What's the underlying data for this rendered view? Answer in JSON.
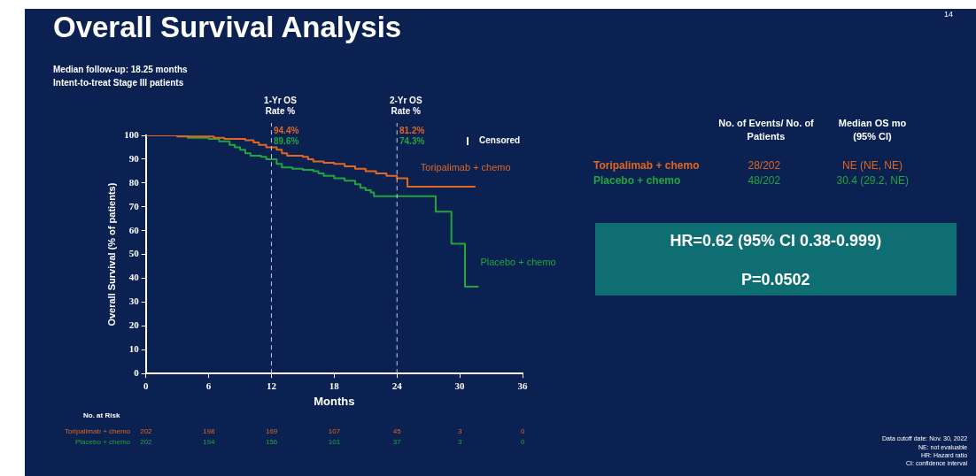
{
  "chart_data": {
    "type": "step",
    "title": "Overall Survival Analysis",
    "xlabel": "Months",
    "ylabel": "Overall Survival (% of patients)",
    "xlim": [
      0,
      36
    ],
    "xticks": [
      0,
      6,
      12,
      18,
      24,
      30,
      36
    ],
    "ylim": [
      0,
      100
    ],
    "yticks": [
      0,
      10,
      20,
      30,
      40,
      50,
      60,
      70,
      80,
      90,
      100
    ],
    "grid": false,
    "legend": false,
    "marker": "none",
    "line_style": "solid",
    "series": [
      {
        "name": "Toripalimab + chemo",
        "color": "#e2661f",
        "x": [
          0,
          3,
          6.5,
          7.5,
          9.5,
          10.3,
          10.8,
          11.5,
          12.5,
          13,
          13.5,
          15,
          15.5,
          16,
          17,
          18,
          19,
          20,
          21,
          22,
          23,
          24,
          25,
          31.5
        ],
        "values": [
          100,
          99.5,
          99,
          98.5,
          98,
          97,
          96,
          95,
          94,
          92.5,
          91.5,
          91,
          90,
          89,
          88.5,
          88,
          87,
          86,
          85,
          84,
          83,
          82,
          78.5,
          78.5
        ]
      },
      {
        "name": "Placebo + chemo",
        "color": "#20a63c",
        "x": [
          0,
          4,
          6,
          7,
          8,
          8.5,
          9,
          9.5,
          10,
          11,
          11.5,
          12.5,
          13,
          14,
          15,
          16,
          16.5,
          17,
          18,
          19,
          20,
          20.5,
          21,
          21.5,
          21.8,
          27.7,
          29.2,
          30.5,
          31.8
        ],
        "values": [
          100,
          99,
          98.5,
          97.5,
          96,
          95,
          94,
          92.5,
          91.5,
          91,
          90,
          88,
          86.5,
          86,
          85.5,
          85,
          84,
          83,
          82,
          81,
          79.5,
          78,
          77,
          76,
          74.5,
          68,
          54.5,
          36.5,
          36.5
        ]
      }
    ],
    "ref_lines": [
      {
        "axis": "x",
        "value": 12,
        "label": "1-Yr OS Rate %",
        "line_style": "dashed",
        "color": "#c8cfdc"
      },
      {
        "axis": "x",
        "value": 24,
        "label": "2-Yr OS Rate %",
        "line_style": "dashed",
        "color": "#c8cfdc"
      }
    ],
    "annotations": [
      "Median follow-up: 18.25 months",
      "Intent-to-treat Stage III patients",
      "94.4%",
      "89.6%",
      "81.2%",
      "74.3%",
      "Censored",
      "No. of Events/ No. of Patients",
      "Median OS mo (95% CI)",
      "Toripalimab + chemo",
      "28/202",
      "NE (NE, NE)",
      "Placebo + chemo",
      "48/202",
      "30.4 (29.2, NE)",
      "HR=0.62 (95% CI 0.38-0.999)",
      "P=0.0502",
      "No. at Risk",
      "Toripalimab + chemo",
      "202",
      "198",
      "169",
      "107",
      "45",
      "3",
      "0",
      "Placebo + chemo",
      "202",
      "194",
      "156",
      "101",
      "37",
      "3",
      "0",
      "Data cutoff date: Nov. 30, 2022",
      "NE: not evaluable",
      "HR: Hazard ratio",
      "CI: confidence interval",
      "14"
    ]
  }
}
